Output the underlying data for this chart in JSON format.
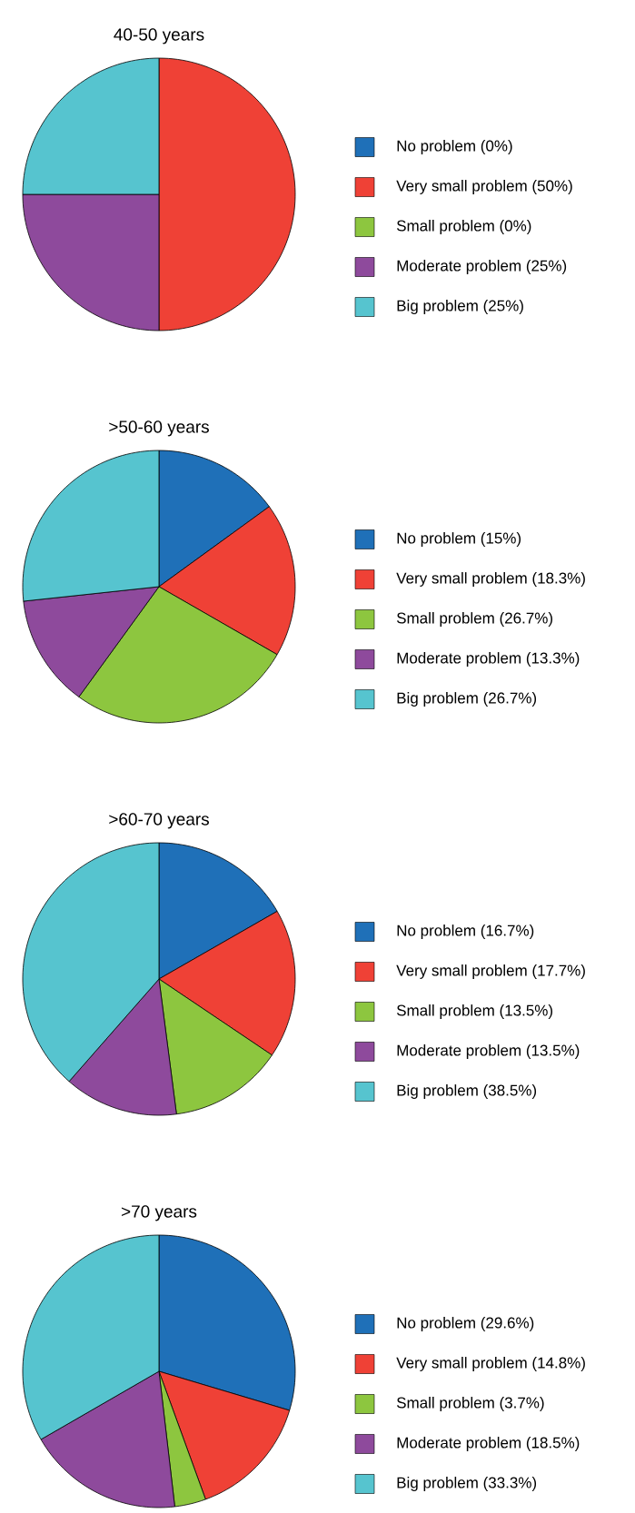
{
  "chart_data": [
    {
      "type": "pie",
      "title": "40-50 years",
      "categories": [
        "No problem (0%)",
        "Very small problem (50%)",
        "Small problem (0%)",
        "Moderate problem (25%)",
        "Big problem (25%)"
      ],
      "values": [
        0,
        50,
        0,
        25,
        25
      ],
      "colors": [
        "#1f70b8",
        "#ef4136",
        "#8dc63f",
        "#8e4a9c",
        "#56c4cf"
      ],
      "legend": "right"
    },
    {
      "type": "pie",
      "title": ">50-60 years",
      "categories": [
        "No problem (15%)",
        "Very small problem (18.3%)",
        "Small problem (26.7%)",
        "Moderate problem (13.3%)",
        "Big problem (26.7%)"
      ],
      "values": [
        15,
        18.3,
        26.7,
        13.3,
        26.7
      ],
      "colors": [
        "#1f70b8",
        "#ef4136",
        "#8dc63f",
        "#8e4a9c",
        "#56c4cf"
      ],
      "legend": "right"
    },
    {
      "type": "pie",
      "title": ">60-70 years",
      "categories": [
        "No problem (16.7%)",
        "Very small problem (17.7%)",
        "Small problem (13.5%)",
        "Moderate problem (13.5%)",
        "Big problem (38.5%)"
      ],
      "values": [
        16.7,
        17.7,
        13.5,
        13.5,
        38.5
      ],
      "colors": [
        "#1f70b8",
        "#ef4136",
        "#8dc63f",
        "#8e4a9c",
        "#56c4cf"
      ],
      "legend": "right"
    },
    {
      "type": "pie",
      "title": ">70 years",
      "categories": [
        "No problem (29.6%)",
        "Very small problem (14.8%)",
        "Small problem (3.7%)",
        "Moderate problem (18.5%)",
        "Big problem (33.3%)"
      ],
      "values": [
        29.6,
        14.8,
        3.7,
        18.5,
        33.3
      ],
      "colors": [
        "#1f70b8",
        "#ef4136",
        "#8dc63f",
        "#8e4a9c",
        "#56c4cf"
      ],
      "legend": "right"
    }
  ]
}
